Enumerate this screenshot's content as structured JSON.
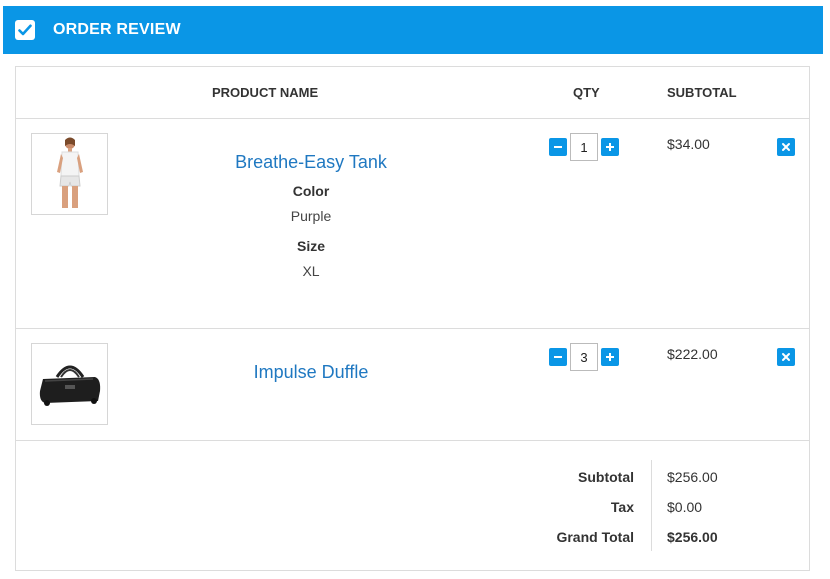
{
  "header": {
    "title": "ORDER REVIEW",
    "icon": "checkbox-checked-icon"
  },
  "columns": {
    "product": "PRODUCT NAME",
    "qty": "QTY",
    "subtotal": "SUBTOTAL"
  },
  "items": [
    {
      "name": "Breathe-Easy Tank",
      "options": [
        {
          "label": "Color",
          "value": "Purple"
        },
        {
          "label": "Size",
          "value": "XL"
        }
      ],
      "qty": "1",
      "subtotal": "$34.00"
    },
    {
      "name": "Impulse Duffle",
      "options": [],
      "qty": "3",
      "subtotal": "$222.00"
    }
  ],
  "totals": {
    "subtotal_label": "Subtotal",
    "subtotal_value": "$256.00",
    "tax_label": "Tax",
    "tax_value": "$0.00",
    "grand_label": "Grand Total",
    "grand_value": "$256.00"
  },
  "colors": {
    "accent": "#0a96e6",
    "link": "#1f78c1"
  }
}
